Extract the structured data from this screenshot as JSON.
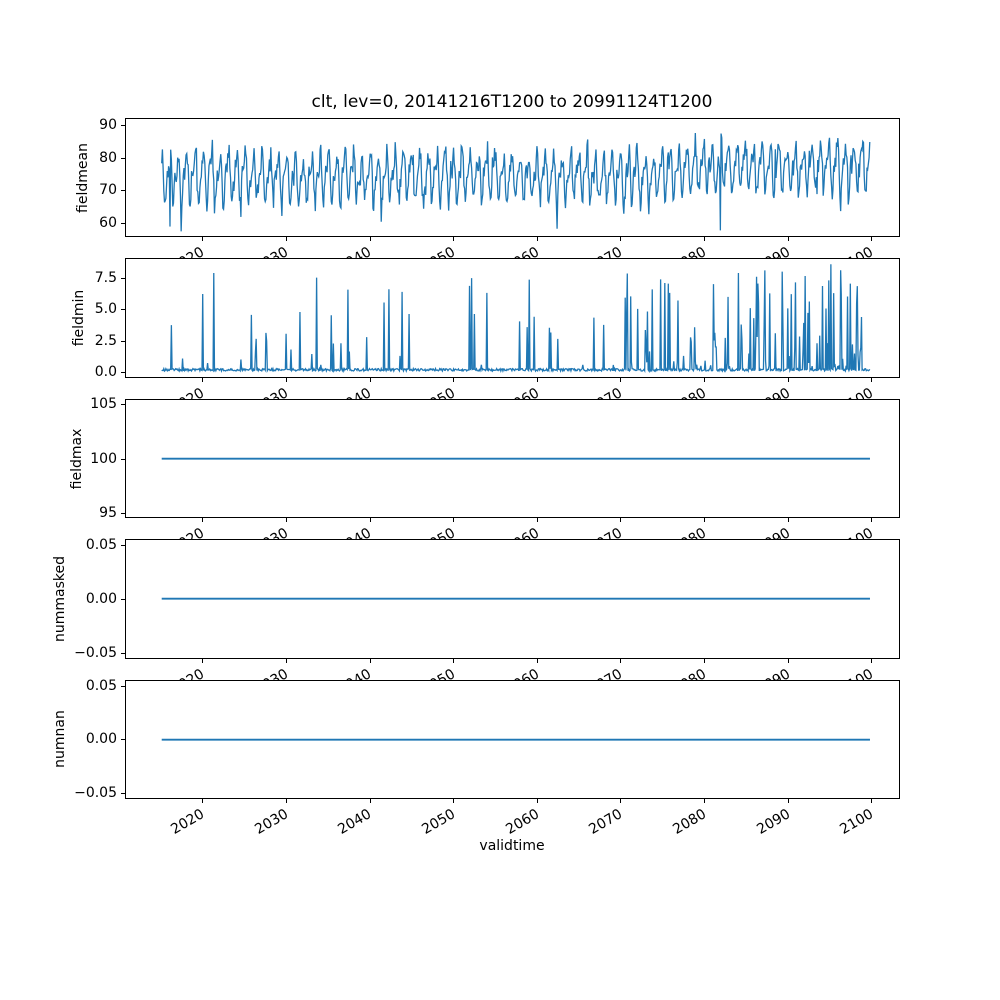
{
  "title": "clt, lev=0, 20141216T1200 to 20991124T1200",
  "line_color": "#1f77b4",
  "axis_color": "#000000",
  "background_color": "#ffffff",
  "x_axis": {
    "label": "validtime",
    "tick_values": [
      2020,
      2030,
      2040,
      2050,
      2060,
      2070,
      2080,
      2090,
      2100
    ],
    "tick_labels": [
      "2020",
      "2030",
      "2040",
      "2050",
      "2060",
      "2070",
      "2080",
      "2090",
      "2100"
    ],
    "lim": [
      2010.68,
      2103.38
    ],
    "data_start": 2014.96,
    "data_end": 2099.9,
    "samples_per_year": 12,
    "tick_rotation_deg": 30
  },
  "chart_data": [
    {
      "type": "line",
      "name": "fieldmean",
      "ylabel": "fieldmean",
      "ytick_values": [
        60,
        70,
        80,
        90
      ],
      "ytick_labels": [
        "60",
        "70",
        "80",
        "90"
      ],
      "ylim": [
        55.4,
        92.3
      ],
      "series": {
        "kind": "seasonal_noisy",
        "seed": 11,
        "base_early": 74.2,
        "base_late": 77.2,
        "transition_year": 2075.5,
        "annual_amplitude": 6.2,
        "semiannual_amplitude": 2.8,
        "noise_sd": 2.0,
        "dip_probability": 0.012,
        "min": 56.8,
        "max": 90.7,
        "notable": [
          {
            "year": 2016.0,
            "value": 58.5
          },
          {
            "year": 2062.4,
            "value": 57.8
          },
          {
            "year": 2082.0,
            "value": 57.3
          }
        ]
      }
    },
    {
      "type": "line",
      "name": "fieldmin",
      "ylabel": "fieldmin",
      "ytick_values": [
        0,
        2.5,
        5,
        7.5
      ],
      "ytick_labels": [
        "0.0",
        "2.5",
        "5.0",
        "7.5"
      ],
      "ylim": [
        -0.43,
        9.03
      ],
      "series": {
        "kind": "spiky",
        "seed": 23,
        "baseline_max": 0.2,
        "spike_prob_early": 0.05,
        "spike_prob_mid": 0.1,
        "spike_prob_late": 0.22,
        "prob_breaks": [
          2070,
          2075
        ],
        "spike_min": 0.4,
        "spike_height_max": 8.2,
        "notable": [
          {
            "year": 2016.1,
            "value": 3.7
          },
          {
            "year": 2021.2,
            "value": 7.9
          },
          {
            "year": 2026.3,
            "value": 2.6
          },
          {
            "year": 2029.9,
            "value": 3.0
          },
          {
            "year": 2035.3,
            "value": 4.5
          },
          {
            "year": 2044.6,
            "value": 4.6
          },
          {
            "year": 2052.5,
            "value": 4.6
          },
          {
            "year": 2057.9,
            "value": 4.0
          },
          {
            "year": 2062.5,
            "value": 2.6
          },
          {
            "year": 2066.8,
            "value": 4.3
          },
          {
            "year": 2073.2,
            "value": 4.8
          },
          {
            "year": 2075.3,
            "value": 7.1
          },
          {
            "year": 2075.9,
            "value": 6.3
          },
          {
            "year": 2081.1,
            "value": 7.0
          },
          {
            "year": 2084.1,
            "value": 7.9
          },
          {
            "year": 2086.3,
            "value": 7.6
          },
          {
            "year": 2090.5,
            "value": 6.2
          },
          {
            "year": 2095.2,
            "value": 8.6
          },
          {
            "year": 2096.5,
            "value": 6.2
          },
          {
            "year": 2097.2,
            "value": 6.0
          }
        ]
      }
    },
    {
      "type": "line",
      "name": "fieldmax",
      "ylabel": "fieldmax",
      "ytick_values": [
        95,
        100,
        105
      ],
      "ytick_labels": [
        "95",
        "100",
        "105"
      ],
      "ylim": [
        94.5,
        105.5
      ],
      "series": {
        "kind": "constant",
        "value": 100
      }
    },
    {
      "type": "line",
      "name": "nummasked",
      "ylabel": "nummasked",
      "ytick_values": [
        -0.05,
        0,
        0.05
      ],
      "ytick_labels": [
        "−0.05",
        "0.00",
        "0.05"
      ],
      "ylim": [
        -0.0555,
        0.0555
      ],
      "series": {
        "kind": "constant",
        "value": 0
      }
    },
    {
      "type": "line",
      "name": "numnan",
      "ylabel": "numnan",
      "ytick_values": [
        -0.05,
        0,
        0.05
      ],
      "ytick_labels": [
        "−0.05",
        "0.00",
        "0.05"
      ],
      "ylim": [
        -0.0555,
        0.0555
      ],
      "series": {
        "kind": "constant",
        "value": 0
      }
    }
  ]
}
